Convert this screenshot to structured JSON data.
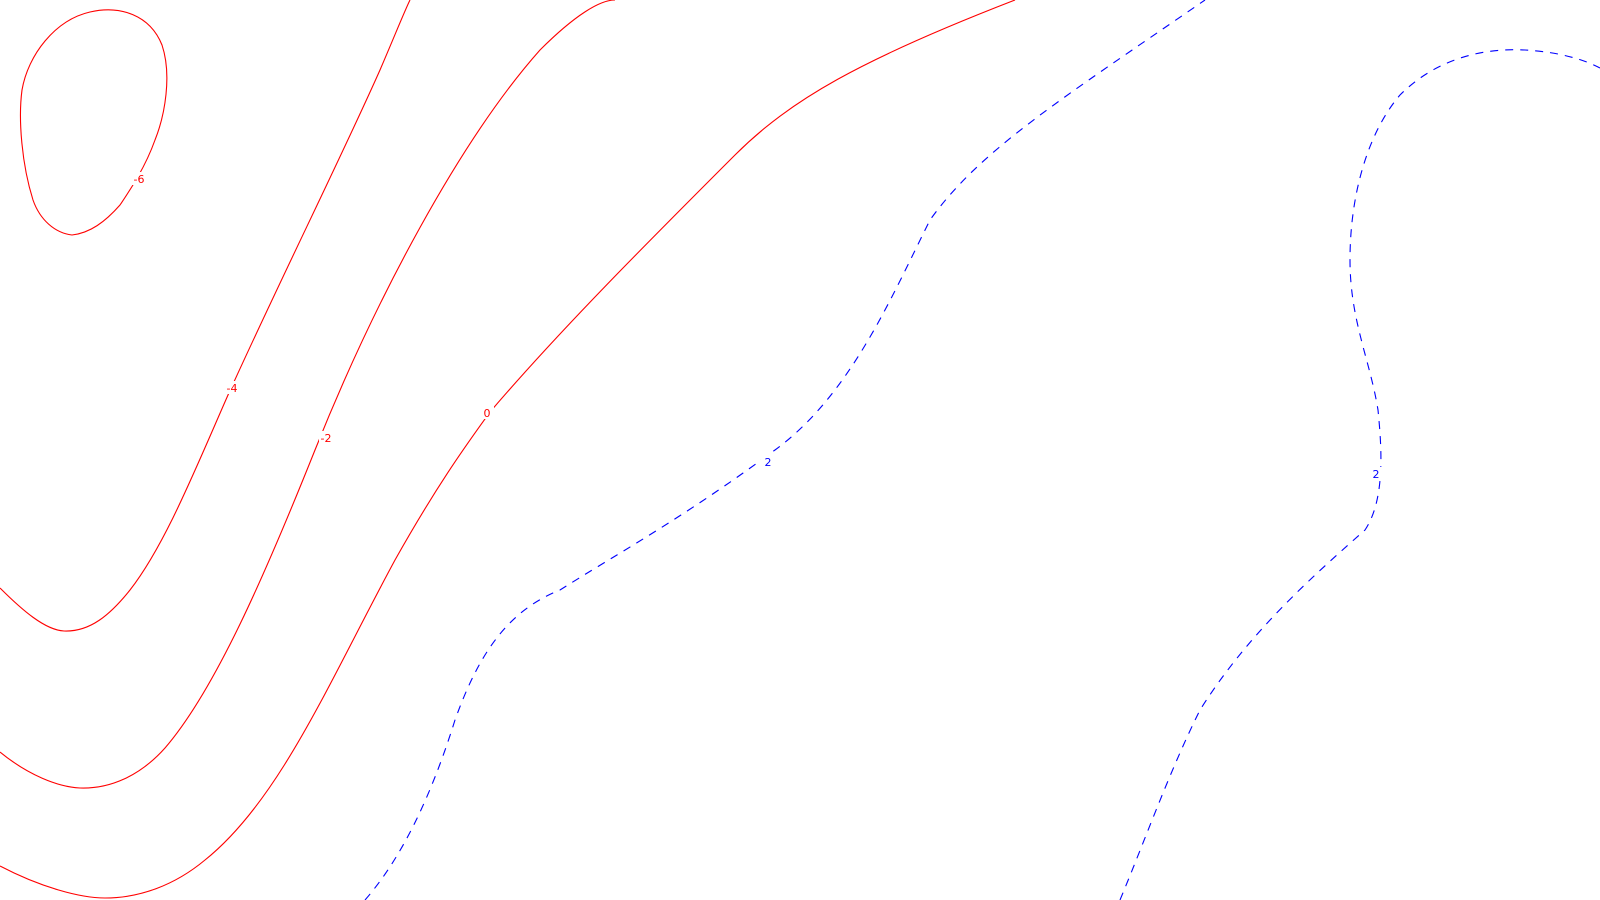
{
  "chart_data": {
    "type": "contour",
    "colors": {
      "negative": "#ff0000",
      "positive": "#0000ff",
      "background": "#ffffff"
    },
    "line_styles": {
      "negative": "solid",
      "positive": "dashed"
    },
    "levels": [
      -6,
      -4,
      -2,
      0,
      2
    ],
    "contours": [
      {
        "level": -6,
        "label": "-6",
        "style": "negative"
      },
      {
        "level": -4,
        "label": "-4",
        "style": "negative"
      },
      {
        "level": -2,
        "label": "-2",
        "style": "negative"
      },
      {
        "level": 0,
        "label": "0",
        "style": "negative"
      },
      {
        "level": 2,
        "label": "2",
        "style": "positive"
      },
      {
        "level": 2,
        "label": "2",
        "style": "positive"
      }
    ],
    "grid": false,
    "axes_visible": false
  }
}
